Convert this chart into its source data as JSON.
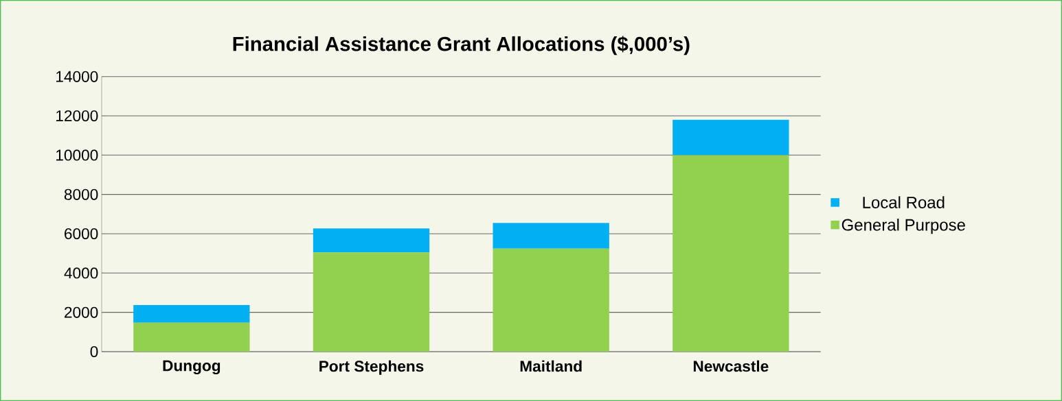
{
  "chart_data": {
    "type": "bar",
    "title": "Financial Assistance Grant Allocations ($,000’s)",
    "categories": [
      "Dungog",
      "Port Stephens",
      "Maitland",
      "Newcastle"
    ],
    "stacked": true,
    "series": [
      {
        "name": "General Purpose",
        "color": "#92d050",
        "values": [
          1470,
          5050,
          5240,
          10000
        ]
      },
      {
        "name": "Local Road",
        "color": "#00b0f0",
        "values": [
          900,
          1220,
          1310,
          1800
        ]
      }
    ],
    "ylim": [
      0,
      14000
    ],
    "yticks": [
      0,
      2000,
      4000,
      6000,
      8000,
      10000,
      12000,
      14000
    ],
    "grid": "y",
    "legend": "right"
  }
}
